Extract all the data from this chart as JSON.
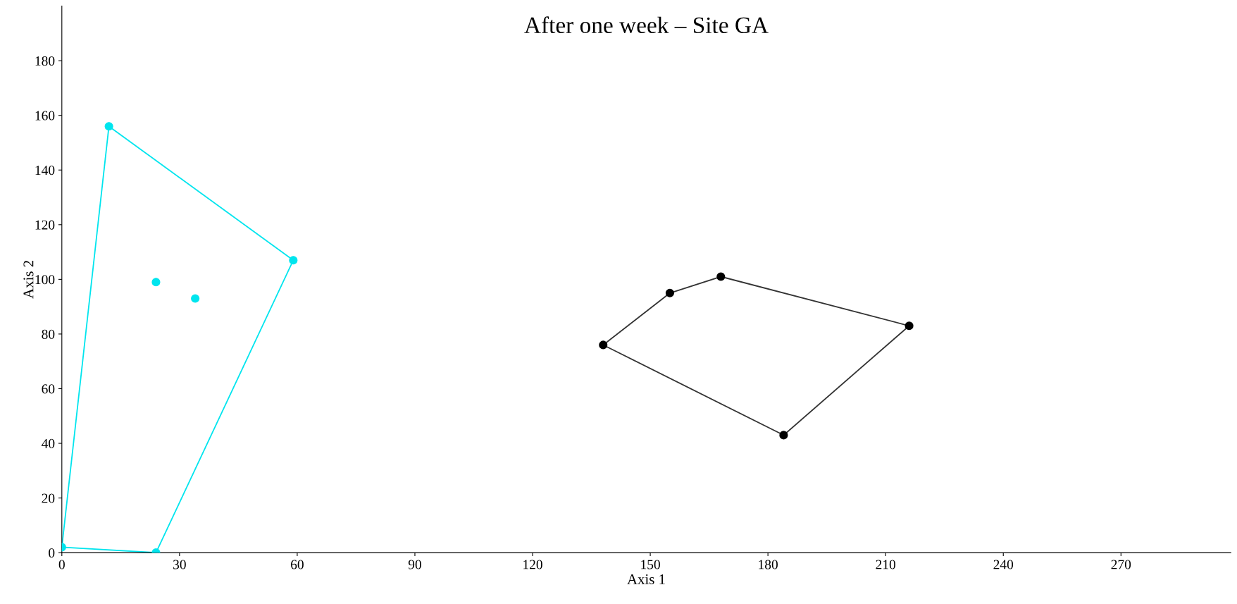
{
  "chart_data": {
    "type": "scatter",
    "title": "After one week – Site GA",
    "xlabel": "Axis 1",
    "ylabel": "Axis 2",
    "xlim": [
      0,
      298
    ],
    "ylim": [
      0,
      200
    ],
    "xticks": [
      0,
      30,
      60,
      90,
      120,
      150,
      180,
      210,
      240,
      270
    ],
    "yticks": [
      0,
      20,
      40,
      60,
      80,
      100,
      120,
      140,
      160,
      180
    ],
    "grid": false,
    "legend": false,
    "marker": "circle",
    "series": [
      {
        "type": "line",
        "color": "#00e5ee",
        "x": [
          0,
          12
        ],
        "values": [
          2,
          156
        ],
        "marker": "none"
      },
      {
        "type": "line",
        "color": "#00e5ee",
        "x": [
          12,
          59
        ],
        "values": [
          156,
          107
        ],
        "marker": "none"
      },
      {
        "type": "line",
        "color": "#00e5ee",
        "x": [
          24,
          59
        ],
        "values": [
          0,
          107
        ],
        "marker": "none"
      },
      {
        "type": "line",
        "color": "#00e5ee",
        "x": [
          0,
          24
        ],
        "values": [
          2,
          0
        ],
        "marker": "none"
      },
      {
        "type": "line",
        "color": "#333333",
        "x": [
          138,
          155
        ],
        "values": [
          76,
          95
        ],
        "marker": "none"
      },
      {
        "type": "line",
        "color": "#333333",
        "x": [
          155,
          168
        ],
        "values": [
          95,
          101
        ],
        "marker": "none"
      },
      {
        "type": "line",
        "color": "#333333",
        "x": [
          168,
          216
        ],
        "values": [
          101,
          83
        ],
        "marker": "none"
      },
      {
        "type": "line",
        "color": "#333333",
        "x": [
          184,
          216
        ],
        "values": [
          43,
          83
        ],
        "marker": "none"
      },
      {
        "type": "line",
        "color": "#333333",
        "x": [
          138,
          184
        ],
        "values": [
          76,
          43
        ],
        "marker": "none"
      },
      {
        "color": "#00e5ee",
        "x": [
          0,
          24,
          12,
          59,
          24,
          34
        ],
        "values": [
          2,
          0,
          156,
          107,
          99,
          93
        ]
      },
      {
        "color": "#000000",
        "x": [
          138,
          155,
          168,
          216,
          184
        ],
        "values": [
          76,
          95,
          101,
          83,
          43
        ]
      }
    ]
  }
}
